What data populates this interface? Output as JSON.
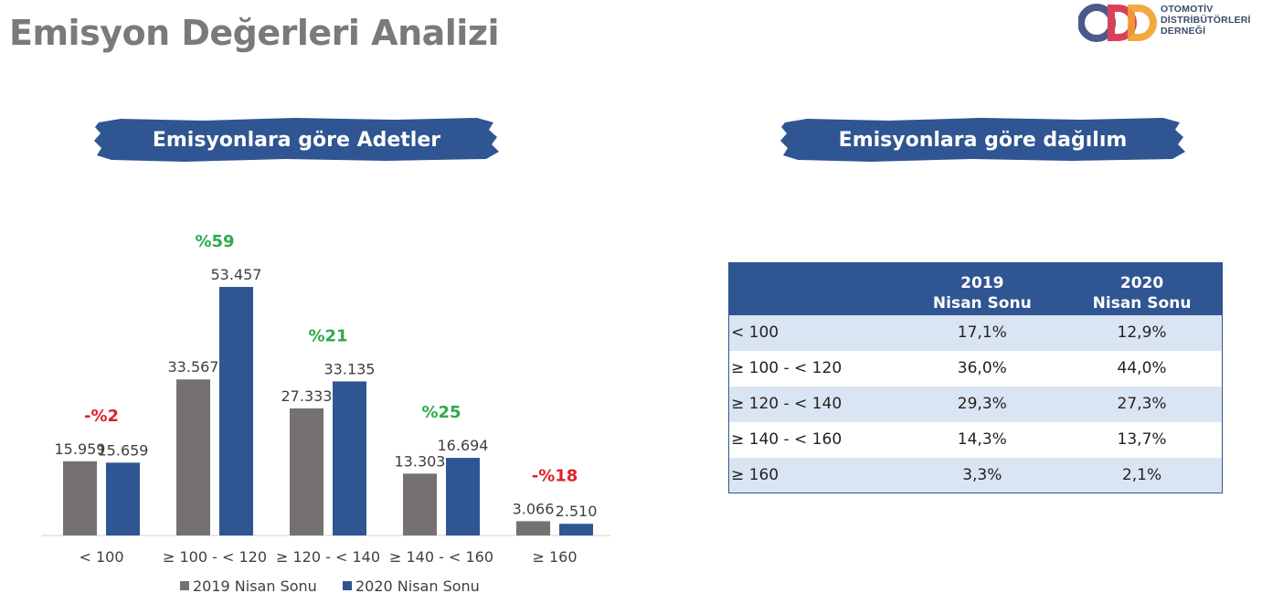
{
  "title": "Emisyon Değerleri Analizi",
  "logo": {
    "lines": [
      "OTOMOTİV",
      "DİSTRİBÜTÖRLERİ",
      "DERNEĞİ"
    ],
    "colors": [
      "#4a5a8a",
      "#d9415a",
      "#f0a030"
    ]
  },
  "banners": {
    "left": "Emisyonlara göre Adetler",
    "right": "Emisyonlara göre dağılım"
  },
  "colors": {
    "series_2019": "#767171",
    "series_2020": "#2f5592",
    "positive": "#2eaa4a",
    "negative": "#e0202a",
    "banner": "#2f5592"
  },
  "chart_data": {
    "type": "bar",
    "categories": [
      "< 100",
      "≥ 100 - < 120",
      "≥ 120 - < 140",
      "≥ 140 - < 160",
      "≥  160"
    ],
    "series": [
      {
        "name": "2019 Nisan Sonu",
        "values": [
          15959,
          33567,
          27333,
          13303,
          3066
        ],
        "labels": [
          "15.959",
          "33.567",
          "27.333",
          "13.303",
          "3.066"
        ]
      },
      {
        "name": "2020 Nisan Sonu",
        "values": [
          15659,
          53457,
          33135,
          16694,
          2510
        ],
        "labels": [
          "15.659",
          "53.457",
          "33.135",
          "16.694",
          "2.510"
        ]
      }
    ],
    "change_labels": [
      "-%2",
      "%59",
      "%21",
      "%25",
      "-%18"
    ],
    "change_signs": [
      "negative",
      "positive",
      "positive",
      "positive",
      "negative"
    ],
    "ylim": [
      0,
      57000
    ],
    "grid": false,
    "legend_placement": "bottom"
  },
  "table": {
    "headers": [
      [
        "",
        ""
      ],
      [
        "2019",
        "Nisan Sonu"
      ],
      [
        "2020",
        "Nisan Sonu"
      ]
    ],
    "rows": [
      [
        "< 100",
        "17,1%",
        "12,9%"
      ],
      [
        "≥ 100 - < 120",
        "36,0%",
        "44,0%"
      ],
      [
        "≥ 120 - < 140",
        "29,3%",
        "27,3%"
      ],
      [
        "≥ 140 - < 160",
        "14,3%",
        "13,7%"
      ],
      [
        "≥  160",
        "3,3%",
        "2,1%"
      ]
    ]
  }
}
